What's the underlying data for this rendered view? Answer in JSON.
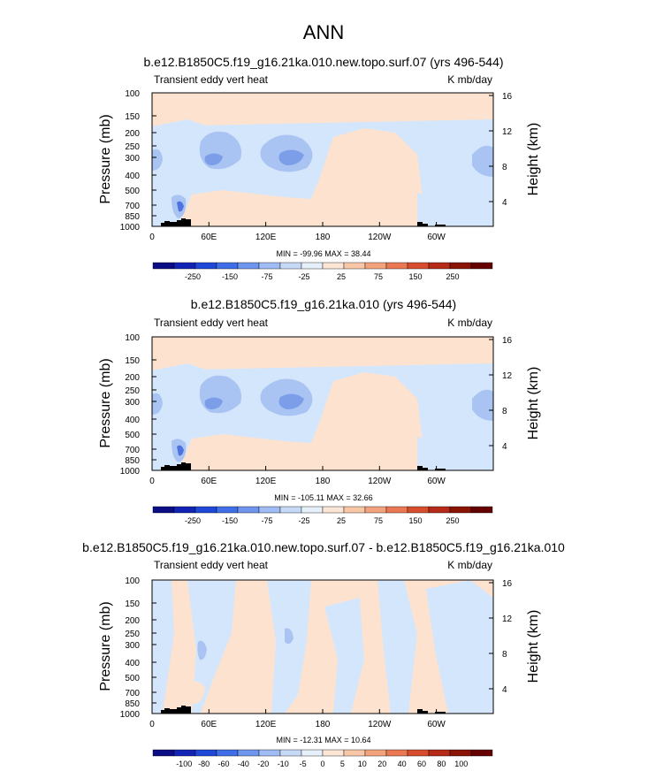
{
  "main_title": "ANN",
  "chart_data": [
    {
      "type": "heatmap",
      "title": "b.e12.B1850C5.f19_g16.21ka.010.new.topo.surf.07 (yrs 496-544)",
      "left_label": "Transient eddy vert heat",
      "right_label": "K mb/day",
      "ylabel": "Pressure (mb)",
      "y2label": "Height (km)",
      "x_ticks": [
        "0",
        "60E",
        "120E",
        "180",
        "120W",
        "60W"
      ],
      "y_ticks": [
        "100",
        "150",
        "200",
        "250",
        "300",
        "400",
        "500",
        "700",
        "850",
        "1000"
      ],
      "y2_ticks": [
        "16",
        "12",
        "8",
        "4"
      ],
      "stats": "MIN = -99.96  MAX = 38.44",
      "colorbar_labels": [
        "-250",
        "-150",
        "-75",
        "-25",
        "25",
        "75",
        "150",
        "250"
      ],
      "background_level": "light-positive"
    },
    {
      "type": "heatmap",
      "title": "b.e12.B1850C5.f19_g16.21ka.010 (yrs 496-544)",
      "left_label": "Transient eddy vert heat",
      "right_label": "K mb/day",
      "ylabel": "Pressure (mb)",
      "y2label": "Height (km)",
      "x_ticks": [
        "0",
        "60E",
        "120E",
        "180",
        "120W",
        "60W"
      ],
      "y_ticks": [
        "100",
        "150",
        "200",
        "250",
        "300",
        "400",
        "500",
        "700",
        "850",
        "1000"
      ],
      "y2_ticks": [
        "16",
        "12",
        "8",
        "4"
      ],
      "stats": "MIN = -105.11  MAX = 32.66",
      "colorbar_labels": [
        "-250",
        "-150",
        "-75",
        "-25",
        "25",
        "75",
        "150",
        "250"
      ],
      "background_level": "light-positive"
    },
    {
      "type": "heatmap",
      "title": "b.e12.B1850C5.f19_g16.21ka.010.new.topo.surf.07 - b.e12.B1850C5.f19_g16.21ka.010",
      "left_label": "Transient eddy vert heat",
      "right_label": "K mb/day",
      "ylabel": "Pressure (mb)",
      "y2label": "Height (km)",
      "x_ticks": [
        "0",
        "60E",
        "120E",
        "180",
        "120W",
        "60W"
      ],
      "y_ticks": [
        "100",
        "150",
        "200",
        "250",
        "300",
        "400",
        "500",
        "700",
        "850",
        "1000"
      ],
      "y2_ticks": [
        "16",
        "12",
        "8",
        "4"
      ],
      "stats": "MIN = -12.31  MAX = 10.64",
      "colorbar_labels": [
        "-100",
        "-80",
        "-60",
        "-40",
        "-20",
        "-10",
        "-5",
        "0",
        "5",
        "10",
        "20",
        "40",
        "60",
        "80",
        "100"
      ],
      "background_level": "light-positive"
    }
  ],
  "colors": {
    "light_pos": "#fde3cf",
    "light_neg": "#d4e6fb",
    "mid_neg": "#a9c4f2",
    "dark_neg": "#7c9ee8",
    "deep_neg": "#4d73de",
    "topo": "#000000"
  },
  "colorbar_colors": [
    "#0b0d86",
    "#1224b6",
    "#1f48d9",
    "#3f6ee8",
    "#6f95ef",
    "#9fbcf5",
    "#c6daf8",
    "#e6f0fb",
    "#fbe6d6",
    "#f7c7a8",
    "#f2a27c",
    "#ea7853",
    "#d84d2d",
    "#b52a18",
    "#8a1306",
    "#650000"
  ]
}
